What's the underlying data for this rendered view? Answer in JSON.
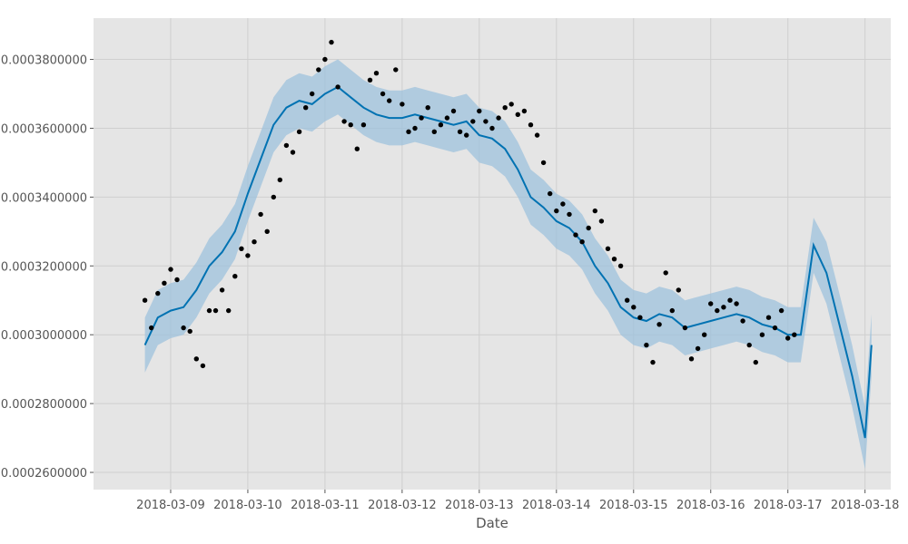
{
  "chart_data": {
    "type": "line",
    "title": "",
    "xlabel": "Date",
    "ylabel": "",
    "x_axis": {
      "min": "2018-03-08T00:00:00",
      "max": "2018-03-18T08:00:00",
      "ticks": [
        "2018-03-09",
        "2018-03-10",
        "2018-03-11",
        "2018-03-12",
        "2018-03-13",
        "2018-03-14",
        "2018-03-15",
        "2018-03-16",
        "2018-03-17",
        "2018-03-18"
      ]
    },
    "y_axis": {
      "min": 0.000255,
      "max": 0.000392,
      "ticks": [
        0.00026,
        0.00028,
        0.0003,
        0.00032,
        0.00034,
        0.00036,
        0.00038
      ],
      "tick_labels": [
        "0.0002600000",
        "0.0002800000",
        "0.0003000000",
        "0.0003200000",
        "0.0003400000",
        "0.0003600000",
        "0.0003800000"
      ]
    },
    "grid": true,
    "colors": {
      "background": "#e5e5e5",
      "grid": "#cfcfcf",
      "forecast_line": "#0072b2",
      "uncertainty_band": "#9ec1dc",
      "observed_points": "#000000"
    },
    "series": [
      {
        "kind": "forecast_line",
        "x": [
          "2018-03-08T16:00",
          "2018-03-08T20:00",
          "2018-03-09T00:00",
          "2018-03-09T04:00",
          "2018-03-09T08:00",
          "2018-03-09T12:00",
          "2018-03-09T16:00",
          "2018-03-09T20:00",
          "2018-03-10T00:00",
          "2018-03-10T04:00",
          "2018-03-10T08:00",
          "2018-03-10T12:00",
          "2018-03-10T16:00",
          "2018-03-10T20:00",
          "2018-03-11T00:00",
          "2018-03-11T04:00",
          "2018-03-11T08:00",
          "2018-03-11T12:00",
          "2018-03-11T16:00",
          "2018-03-11T20:00",
          "2018-03-12T00:00",
          "2018-03-12T04:00",
          "2018-03-12T08:00",
          "2018-03-12T12:00",
          "2018-03-12T16:00",
          "2018-03-12T20:00",
          "2018-03-13T00:00",
          "2018-03-13T04:00",
          "2018-03-13T08:00",
          "2018-03-13T12:00",
          "2018-03-13T16:00",
          "2018-03-13T20:00",
          "2018-03-14T00:00",
          "2018-03-14T04:00",
          "2018-03-14T08:00",
          "2018-03-14T12:00",
          "2018-03-14T16:00",
          "2018-03-14T20:00",
          "2018-03-15T00:00",
          "2018-03-15T04:00",
          "2018-03-15T08:00",
          "2018-03-15T12:00",
          "2018-03-15T16:00",
          "2018-03-15T20:00",
          "2018-03-16T00:00",
          "2018-03-16T04:00",
          "2018-03-16T08:00",
          "2018-03-16T12:00",
          "2018-03-16T16:00",
          "2018-03-16T20:00",
          "2018-03-17T00:00",
          "2018-03-17T04:00",
          "2018-03-17T08:00",
          "2018-03-17T12:00",
          "2018-03-17T16:00",
          "2018-03-17T20:00",
          "2018-03-18T00:00",
          "2018-03-18T02:00"
        ],
        "y": [
          0.000297,
          0.000305,
          0.000307,
          0.000308,
          0.000313,
          0.00032,
          0.000324,
          0.00033,
          0.000341,
          0.000351,
          0.000361,
          0.000366,
          0.000368,
          0.000367,
          0.00037,
          0.000372,
          0.000369,
          0.000366,
          0.000364,
          0.000363,
          0.000363,
          0.000364,
          0.000363,
          0.000362,
          0.000361,
          0.000362,
          0.000358,
          0.000357,
          0.000354,
          0.000348,
          0.00034,
          0.000337,
          0.000333,
          0.000331,
          0.000327,
          0.00032,
          0.000315,
          0.000308,
          0.000305,
          0.000304,
          0.000306,
          0.000305,
          0.000302,
          0.000303,
          0.000304,
          0.000305,
          0.000306,
          0.000305,
          0.000303,
          0.000302,
          0.0003,
          0.0003,
          0.000326,
          0.000318,
          0.000303,
          0.000288,
          0.00027,
          0.000297
        ],
        "lower": [
          0.000289,
          0.000297,
          0.000299,
          0.0003,
          0.000305,
          0.000312,
          0.000316,
          0.000322,
          0.000333,
          0.000343,
          0.000353,
          0.000358,
          0.00036,
          0.000359,
          0.000362,
          0.000364,
          0.000361,
          0.000358,
          0.000356,
          0.000355,
          0.000355,
          0.000356,
          0.000355,
          0.000354,
          0.000353,
          0.000354,
          0.00035,
          0.000349,
          0.000346,
          0.00034,
          0.000332,
          0.000329,
          0.000325,
          0.000323,
          0.000319,
          0.000312,
          0.000307,
          0.0003,
          0.000297,
          0.000296,
          0.000298,
          0.000297,
          0.000294,
          0.000295,
          0.000296,
          0.000297,
          0.000298,
          0.000297,
          0.000295,
          0.000294,
          0.000292,
          0.000292,
          0.000318,
          0.000309,
          0.000294,
          0.000279,
          0.000261,
          0.000288
        ],
        "upper": [
          0.000305,
          0.000313,
          0.000315,
          0.000316,
          0.000321,
          0.000328,
          0.000332,
          0.000338,
          0.000349,
          0.000359,
          0.000369,
          0.000374,
          0.000376,
          0.000375,
          0.000378,
          0.00038,
          0.000377,
          0.000374,
          0.000372,
          0.000371,
          0.000371,
          0.000372,
          0.000371,
          0.00037,
          0.000369,
          0.00037,
          0.000366,
          0.000365,
          0.000362,
          0.000356,
          0.000348,
          0.000345,
          0.000341,
          0.000339,
          0.000335,
          0.000328,
          0.000323,
          0.000316,
          0.000313,
          0.000312,
          0.000314,
          0.000313,
          0.00031,
          0.000311,
          0.000312,
          0.000313,
          0.000314,
          0.000313,
          0.000311,
          0.00031,
          0.000308,
          0.000308,
          0.000334,
          0.000327,
          0.000312,
          0.000297,
          0.000279,
          0.000306
        ]
      },
      {
        "kind": "observed_points",
        "x": [
          "2018-03-08T16:00",
          "2018-03-08T18:00",
          "2018-03-08T20:00",
          "2018-03-08T22:00",
          "2018-03-09T00:00",
          "2018-03-09T02:00",
          "2018-03-09T04:00",
          "2018-03-09T06:00",
          "2018-03-09T08:00",
          "2018-03-09T10:00",
          "2018-03-09T12:00",
          "2018-03-09T14:00",
          "2018-03-09T16:00",
          "2018-03-09T18:00",
          "2018-03-09T20:00",
          "2018-03-09T22:00",
          "2018-03-10T00:00",
          "2018-03-10T02:00",
          "2018-03-10T04:00",
          "2018-03-10T06:00",
          "2018-03-10T08:00",
          "2018-03-10T10:00",
          "2018-03-10T12:00",
          "2018-03-10T14:00",
          "2018-03-10T16:00",
          "2018-03-10T18:00",
          "2018-03-10T20:00",
          "2018-03-10T22:00",
          "2018-03-11T00:00",
          "2018-03-11T02:00",
          "2018-03-11T04:00",
          "2018-03-11T06:00",
          "2018-03-11T08:00",
          "2018-03-11T10:00",
          "2018-03-11T12:00",
          "2018-03-11T14:00",
          "2018-03-11T16:00",
          "2018-03-11T18:00",
          "2018-03-11T20:00",
          "2018-03-11T22:00",
          "2018-03-12T00:00",
          "2018-03-12T02:00",
          "2018-03-12T04:00",
          "2018-03-12T06:00",
          "2018-03-12T08:00",
          "2018-03-12T10:00",
          "2018-03-12T12:00",
          "2018-03-12T14:00",
          "2018-03-12T16:00",
          "2018-03-12T18:00",
          "2018-03-12T20:00",
          "2018-03-12T22:00",
          "2018-03-13T00:00",
          "2018-03-13T02:00",
          "2018-03-13T04:00",
          "2018-03-13T06:00",
          "2018-03-13T08:00",
          "2018-03-13T10:00",
          "2018-03-13T12:00",
          "2018-03-13T14:00",
          "2018-03-13T16:00",
          "2018-03-13T18:00",
          "2018-03-13T20:00",
          "2018-03-13T22:00",
          "2018-03-14T00:00",
          "2018-03-14T02:00",
          "2018-03-14T04:00",
          "2018-03-14T06:00",
          "2018-03-14T08:00",
          "2018-03-14T10:00",
          "2018-03-14T12:00",
          "2018-03-14T14:00",
          "2018-03-14T16:00",
          "2018-03-14T18:00",
          "2018-03-14T20:00",
          "2018-03-14T22:00",
          "2018-03-15T00:00",
          "2018-03-15T02:00",
          "2018-03-15T04:00",
          "2018-03-15T06:00",
          "2018-03-15T08:00",
          "2018-03-15T10:00",
          "2018-03-15T12:00",
          "2018-03-15T14:00",
          "2018-03-15T16:00",
          "2018-03-15T18:00",
          "2018-03-15T20:00",
          "2018-03-15T22:00",
          "2018-03-16T00:00",
          "2018-03-16T02:00",
          "2018-03-16T04:00",
          "2018-03-16T06:00",
          "2018-03-16T08:00",
          "2018-03-16T10:00",
          "2018-03-16T12:00",
          "2018-03-16T14:00",
          "2018-03-16T16:00",
          "2018-03-16T18:00",
          "2018-03-16T20:00",
          "2018-03-16T22:00",
          "2018-03-17T00:00",
          "2018-03-17T02:00"
        ],
        "y": [
          0.00031,
          0.000302,
          0.000312,
          0.000315,
          0.000319,
          0.000316,
          0.000302,
          0.000301,
          0.000293,
          0.000291,
          0.000307,
          0.000307,
          0.000313,
          0.000307,
          0.000317,
          0.000325,
          0.000323,
          0.000327,
          0.000335,
          0.00033,
          0.00034,
          0.000345,
          0.000355,
          0.000353,
          0.000359,
          0.000366,
          0.00037,
          0.000377,
          0.00038,
          0.000385,
          0.000372,
          0.000362,
          0.000361,
          0.000354,
          0.000361,
          0.000374,
          0.000376,
          0.00037,
          0.000368,
          0.000377,
          0.000367,
          0.000359,
          0.00036,
          0.000363,
          0.000366,
          0.000359,
          0.000361,
          0.000363,
          0.000365,
          0.000359,
          0.000358,
          0.000362,
          0.000365,
          0.000362,
          0.00036,
          0.000363,
          0.000366,
          0.000367,
          0.000364,
          0.000365,
          0.000361,
          0.000358,
          0.00035,
          0.000341,
          0.000336,
          0.000338,
          0.000335,
          0.000329,
          0.000327,
          0.000331,
          0.000336,
          0.000333,
          0.000325,
          0.000322,
          0.00032,
          0.00031,
          0.000308,
          0.000305,
          0.000297,
          0.000292,
          0.000303,
          0.000318,
          0.000307,
          0.000313,
          0.000302,
          0.000293,
          0.000296,
          0.0003,
          0.000309,
          0.000307,
          0.000308,
          0.00031,
          0.000309,
          0.000304,
          0.000297,
          0.000292,
          0.0003,
          0.000305,
          0.000302,
          0.000307,
          0.000299,
          0.0003
        ]
      }
    ]
  }
}
